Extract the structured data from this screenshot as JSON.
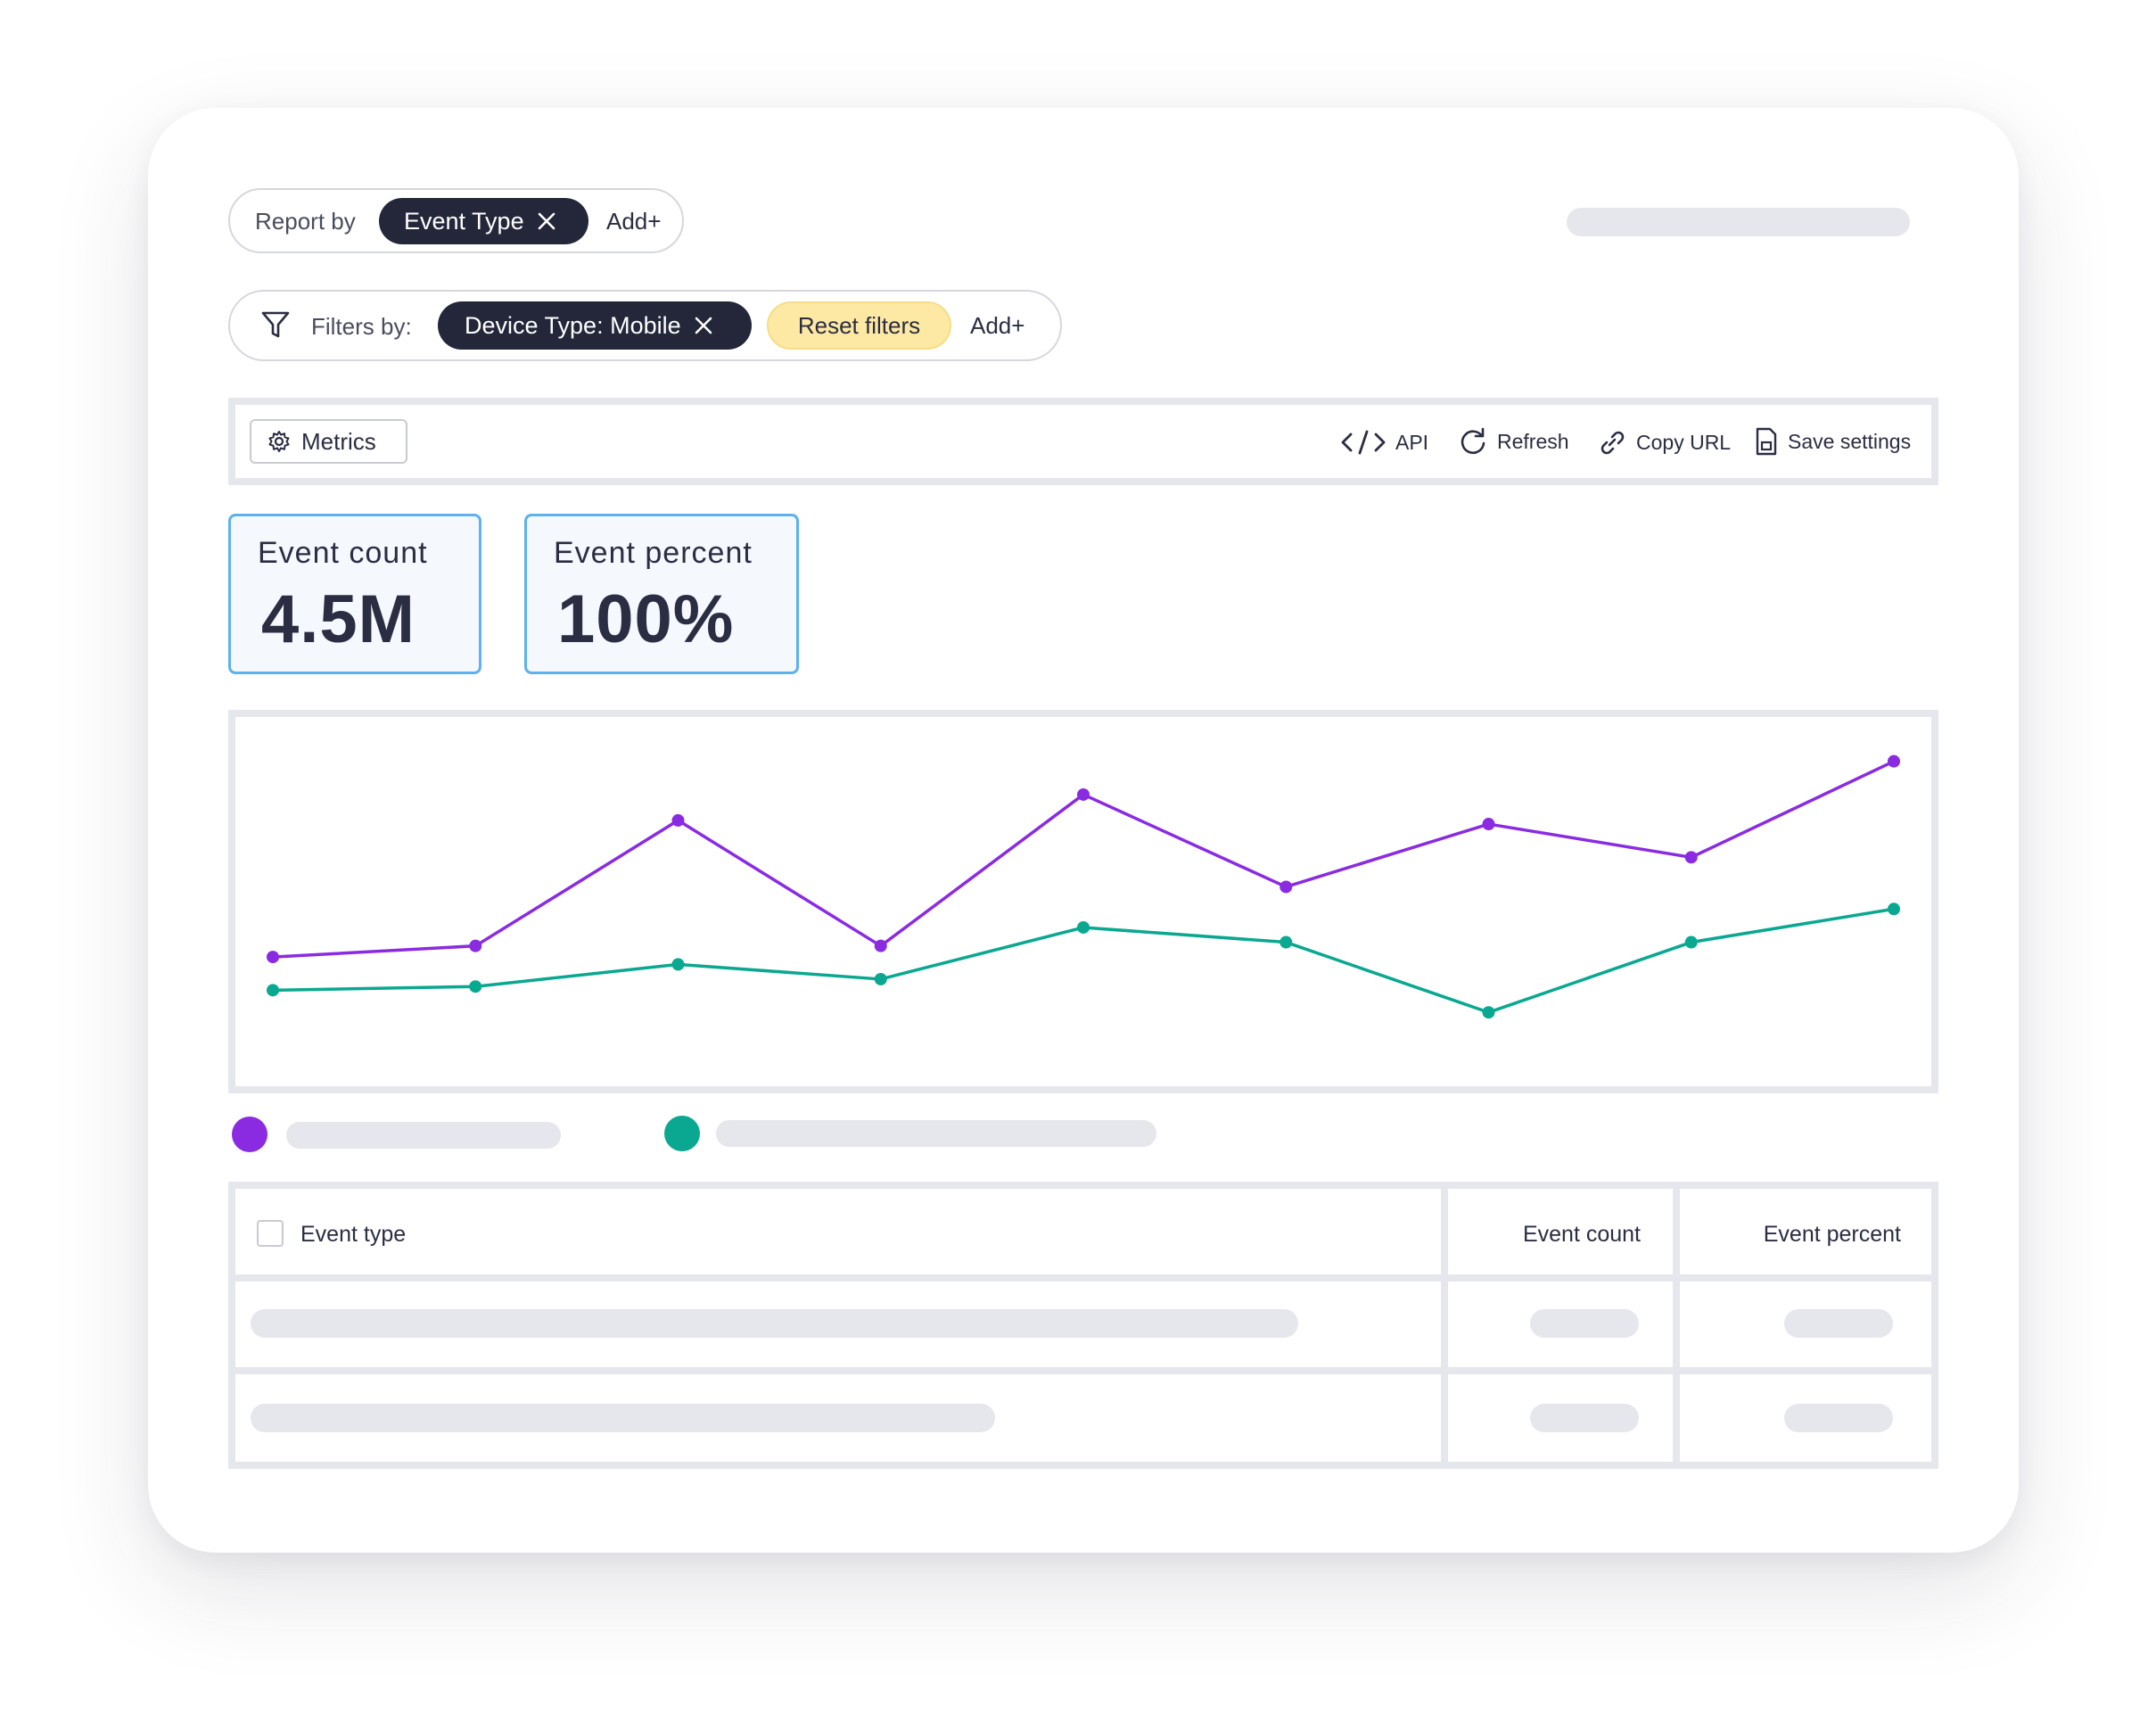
{
  "report_by": {
    "label": "Report by",
    "chip": "Event Type",
    "add": "Add+"
  },
  "filters": {
    "label": "Filters by:",
    "chip": "Device Type: Mobile",
    "reset": "Reset filters",
    "add": "Add+"
  },
  "toolbar": {
    "metrics": "Metrics",
    "api": "API",
    "refresh": "Refresh",
    "copy_url": "Copy URL",
    "save_settings": "Save settings"
  },
  "kpis": [
    {
      "label": "Event count",
      "value": "4.5M"
    },
    {
      "label": "Event percent",
      "value": "100%"
    }
  ],
  "chart_data": {
    "type": "line",
    "x": [
      1,
      2,
      3,
      4,
      5,
      6,
      7,
      8,
      9
    ],
    "ylim": [
      0,
      100
    ],
    "grid": false,
    "legend": "bottom-left",
    "series": [
      {
        "color": "#8a2be2",
        "values": [
          35,
          38,
          72,
          38,
          79,
          54,
          71,
          62,
          88
        ]
      },
      {
        "color": "#0aa890",
        "values": [
          26,
          27,
          33,
          29,
          43,
          39,
          20,
          39,
          48
        ]
      }
    ]
  },
  "table": {
    "headers": {
      "event_type": "Event type",
      "event_count": "Event count",
      "event_percent": "Event percent"
    }
  },
  "colors": {
    "accent_purple": "#8a2be2",
    "accent_teal": "#0aa890",
    "chip_dark": "#24273a",
    "chip_yellow": "#fde9a4",
    "kpi_border": "#5cb2ee",
    "skeleton": "#e5e7ed"
  }
}
